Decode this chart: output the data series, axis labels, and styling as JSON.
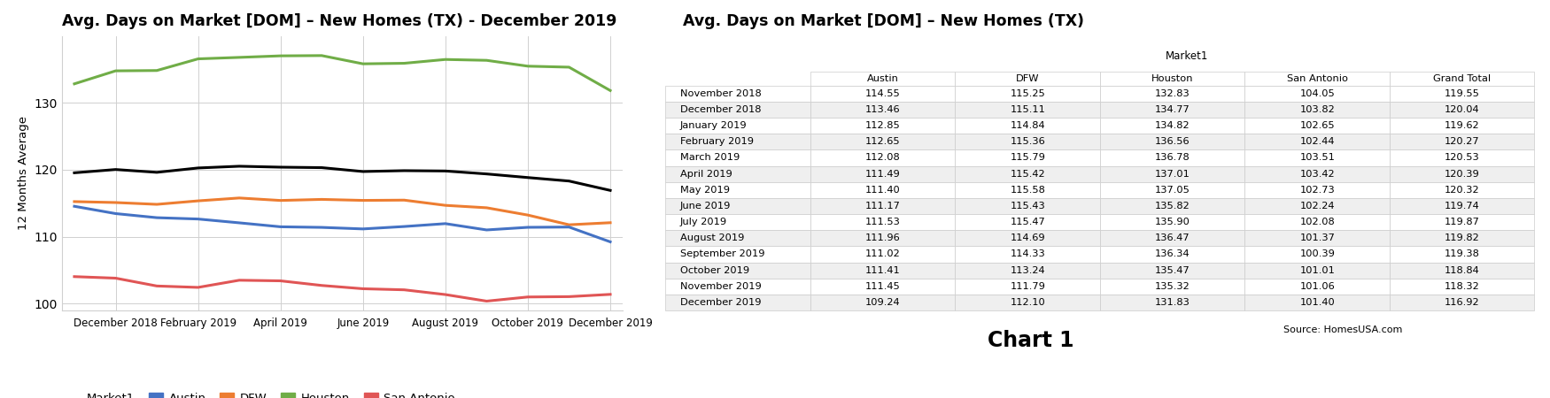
{
  "chart_title": "Avg. Days on Market [DOM] – New Homes (TX) - December 2019",
  "table_title": "Avg. Days on Market [DOM] – New Homes (TX)",
  "ylabel": "12 Months Average",
  "x_labels": [
    "December 2018",
    "February 2019",
    "April 2019",
    "June 2019",
    "August 2019",
    "October 2019",
    "December 2019"
  ],
  "months": [
    "November 2018",
    "December 2018",
    "January 2019",
    "February 2019",
    "March 2019",
    "April 2019",
    "May 2019",
    "June 2019",
    "July 2019",
    "August 2019",
    "September 2019",
    "October 2019",
    "November 2019",
    "December 2019"
  ],
  "austin": [
    114.55,
    113.46,
    112.85,
    112.65,
    112.08,
    111.49,
    111.4,
    111.17,
    111.53,
    111.96,
    111.02,
    111.41,
    111.45,
    109.24
  ],
  "dfw": [
    115.25,
    115.11,
    114.84,
    115.36,
    115.79,
    115.42,
    115.58,
    115.43,
    115.47,
    114.69,
    114.33,
    113.24,
    111.79,
    112.1
  ],
  "houston": [
    132.83,
    134.77,
    134.82,
    136.56,
    136.78,
    137.01,
    137.05,
    135.82,
    135.9,
    136.47,
    136.34,
    135.47,
    135.32,
    131.83
  ],
  "san_antonio": [
    104.05,
    103.82,
    102.65,
    102.44,
    103.51,
    103.42,
    102.73,
    102.24,
    102.08,
    101.37,
    100.39,
    101.01,
    101.06,
    101.4
  ],
  "grand_total": [
    119.55,
    120.04,
    119.62,
    120.27,
    120.53,
    120.39,
    120.32,
    119.74,
    119.87,
    119.82,
    119.38,
    118.84,
    118.32,
    116.92
  ],
  "color_austin": "#4472c4",
  "color_dfw": "#ed7d31",
  "color_houston": "#70ad47",
  "color_san_antonio": "#e05555",
  "color_grand_total": "#000000",
  "ylim": [
    99,
    140
  ],
  "yticks": [
    100,
    110,
    120,
    130
  ],
  "source_text": "Source: HomesUSA.com",
  "chart1_label": "Chart 1",
  "table_col_headers": [
    "Austin",
    "DFW",
    "Houston",
    "San Antonio",
    "Grand Total"
  ],
  "market1_label": "Market1",
  "row_alt_color": "#efefef",
  "row_white": "#ffffff",
  "grid_color": "#d0d0d0"
}
